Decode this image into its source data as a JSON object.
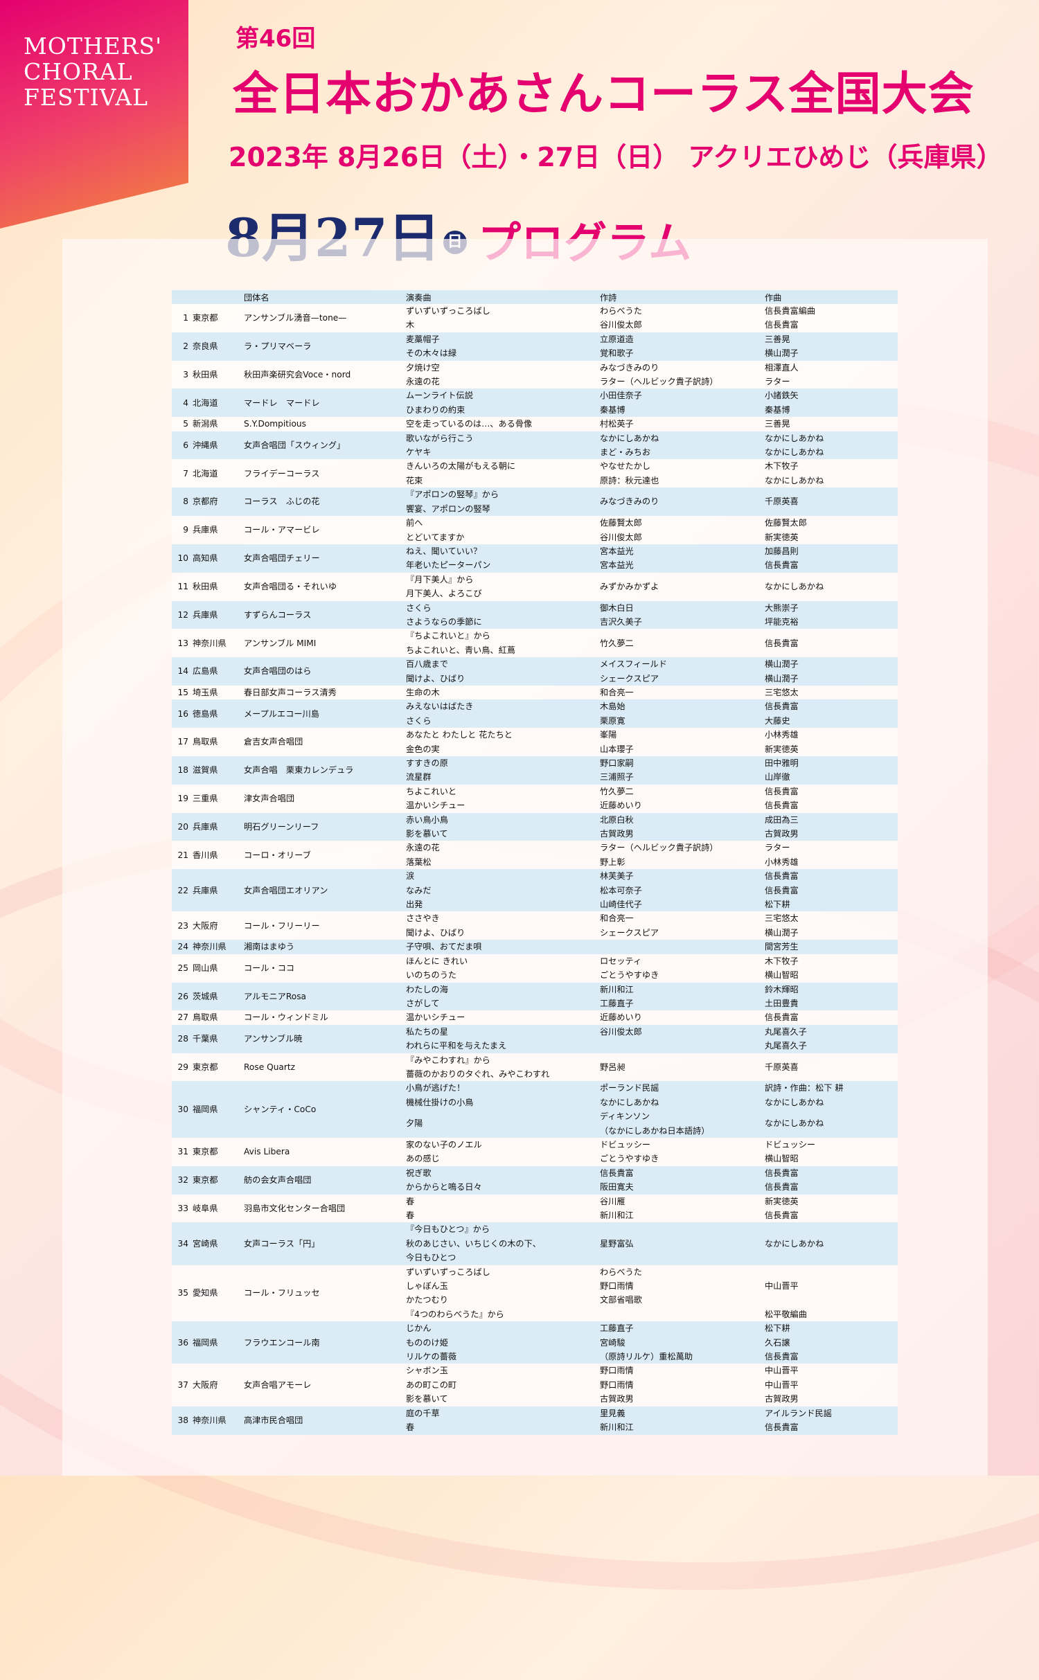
{
  "header": {
    "corner_lines": [
      "MOTHERS'",
      "CHORAL",
      "FESTIVAL"
    ],
    "edition": "第46回",
    "title": "全日本おかあさんコーラス全国大会",
    "dateline": "2023年 8月26日（土）・27日（日） アクリエひめじ（兵庫県）",
    "program_date": "8月27日",
    "program_dow": "日",
    "program_label": "プログラム"
  },
  "table": {
    "columns": [
      "",
      "",
      "団体名",
      "演奏曲",
      "作詩",
      "作曲"
    ],
    "groups": [
      {
        "no": "1",
        "pref": "東京都",
        "name": "アンサンブル湧音—tone—",
        "rows": [
          [
            "ずいずいずっころばし",
            "わらべうた",
            "信長貴富編曲"
          ],
          [
            "木",
            "谷川俊太郎",
            "信長貴富"
          ]
        ]
      },
      {
        "no": "2",
        "pref": "奈良県",
        "name": "ラ・プリマベーラ",
        "rows": [
          [
            "麦藁帽子",
            "立原道造",
            "三善晃"
          ],
          [
            "その木々は緑",
            "覚和歌子",
            "横山潤子"
          ]
        ]
      },
      {
        "no": "3",
        "pref": "秋田県",
        "name": "秋田声楽研究会Voce・nord",
        "rows": [
          [
            "夕焼け空",
            "みなづきみのり",
            "相澤直人"
          ],
          [
            "永遠の花",
            "ラター（ヘルビック貴子訳詩）",
            "ラター"
          ]
        ]
      },
      {
        "no": "4",
        "pref": "北海道",
        "name": "マードレ　マードレ",
        "rows": [
          [
            "ムーンライト伝説",
            "小田佳奈子",
            "小諸鉄矢"
          ],
          [
            "ひまわりの約束",
            "秦基博",
            "秦基博"
          ]
        ]
      },
      {
        "no": "5",
        "pref": "新潟県",
        "name": "S.Y.Dompitious",
        "rows": [
          [
            "空を走っているのは…、ある骨像",
            "村松英子",
            "三善晃"
          ]
        ]
      },
      {
        "no": "6",
        "pref": "沖縄県",
        "name": "女声合唱団「スウィング」",
        "rows": [
          [
            "歌いながら行こう",
            "なかにしあかね",
            "なかにしあかね"
          ],
          [
            "ケヤキ",
            "まど・みちお",
            "なかにしあかね"
          ]
        ]
      },
      {
        "no": "7",
        "pref": "北海道",
        "name": "フライデーコーラス",
        "rows": [
          [
            "きんいろの太陽がもえる朝に",
            "やなせたかし",
            "木下牧子"
          ],
          [
            "花束",
            "原詩：秋元達也",
            "なかにしあかね"
          ]
        ]
      },
      {
        "no": "8",
        "pref": "京都府",
        "name": "コーラス　ふじの花",
        "rows": [
          [
            "『アポロンの竪琴』から\n饗宴、アポロンの竪琴",
            "みなづきみのり",
            "千原英喜"
          ]
        ]
      },
      {
        "no": "9",
        "pref": "兵庫県",
        "name": "コール・アマービレ",
        "rows": [
          [
            "前へ",
            "佐藤賢太郎",
            "佐藤賢太郎"
          ],
          [
            "とどいてますか",
            "谷川俊太郎",
            "新実徳英"
          ]
        ]
      },
      {
        "no": "10",
        "pref": "高知県",
        "name": "女声合唱団チェリー",
        "rows": [
          [
            "ねえ、聞いていい？",
            "宮本益光",
            "加藤昌則"
          ],
          [
            "年老いたピーターパン",
            "宮本益光",
            "信長貴富"
          ]
        ]
      },
      {
        "no": "11",
        "pref": "秋田県",
        "name": "女声合唱団る・それいゆ",
        "rows": [
          [
            "『月下美人』から\n月下美人、よろこび",
            "みずかみかずよ",
            "なかにしあかね"
          ]
        ]
      },
      {
        "no": "12",
        "pref": "兵庫県",
        "name": "すずらんコーラス",
        "rows": [
          [
            "さくら",
            "御木白日",
            "大熊崇子"
          ],
          [
            "さようならの季節に",
            "吉沢久美子",
            "坪能克裕"
          ]
        ]
      },
      {
        "no": "13",
        "pref": "神奈川県",
        "name": "アンサンブル MIMI",
        "rows": [
          [
            "『ちよこれいと』から\nちよこれいと、青い鳥、紅蔦",
            "竹久夢二",
            "信長貴富"
          ]
        ]
      },
      {
        "no": "14",
        "pref": "広島県",
        "name": "女声合唱団のはら",
        "rows": [
          [
            "百八歳まで",
            "メイスフィールド",
            "横山潤子"
          ],
          [
            "聞けよ、ひばり",
            "シェークスピア",
            "横山潤子"
          ]
        ]
      },
      {
        "no": "15",
        "pref": "埼玉県",
        "name": "春日部女声コーラス清秀",
        "rows": [
          [
            "生命の木",
            "和合亮一",
            "三宅悠太"
          ]
        ]
      },
      {
        "no": "16",
        "pref": "徳島県",
        "name": "メープルエコー川島",
        "rows": [
          [
            "みえないはばたき",
            "木島始",
            "信長貴富"
          ],
          [
            "さくら",
            "栗原寛",
            "大藤史"
          ]
        ]
      },
      {
        "no": "17",
        "pref": "鳥取県",
        "name": "倉吉女声合唱団",
        "rows": [
          [
            "あなたと わたしと 花たちと",
            "峯陽",
            "小林秀雄"
          ],
          [
            "金色の実",
            "山本瓔子",
            "新実徳英"
          ]
        ]
      },
      {
        "no": "18",
        "pref": "滋賀県",
        "name": "女声合唱　栗東カレンデュラ",
        "rows": [
          [
            "すすきの原",
            "野口家嗣",
            "田中雅明"
          ],
          [
            "流星群",
            "三浦照子",
            "山岸徹"
          ]
        ]
      },
      {
        "no": "19",
        "pref": "三重県",
        "name": "津女声合唱団",
        "rows": [
          [
            "ちよこれいと",
            "竹久夢二",
            "信長貴富"
          ],
          [
            "温かいシチュー",
            "近藤めいり",
            "信長貴富"
          ]
        ]
      },
      {
        "no": "20",
        "pref": "兵庫県",
        "name": "明石グリーンリーフ",
        "rows": [
          [
            "赤い鳥小鳥",
            "北原白秋",
            "成田為三"
          ],
          [
            "影を慕いて",
            "古賀政男",
            "古賀政男"
          ]
        ]
      },
      {
        "no": "21",
        "pref": "香川県",
        "name": "コーロ・オリーブ",
        "rows": [
          [
            "永遠の花",
            "ラター（ヘルビック貴子訳詩）",
            "ラター"
          ],
          [
            "落葉松",
            "野上彰",
            "小林秀雄"
          ]
        ]
      },
      {
        "no": "22",
        "pref": "兵庫県",
        "name": "女声合唱団エオリアン",
        "rows": [
          [
            "涙",
            "林芙美子",
            "信長貴富"
          ],
          [
            "なみだ",
            "松本可奈子",
            "信長貴富"
          ],
          [
            "出発",
            "山崎佳代子",
            "松下耕"
          ]
        ]
      },
      {
        "no": "23",
        "pref": "大阪府",
        "name": "コール・フリーリー",
        "rows": [
          [
            "ささやき",
            "和合亮一",
            "三宅悠太"
          ],
          [
            "聞けよ、ひばり",
            "シェークスピア",
            "横山潤子"
          ]
        ]
      },
      {
        "no": "24",
        "pref": "神奈川県",
        "name": "湘南はまゆう",
        "rows": [
          [
            "子守唄、おてだま唄",
            "",
            "間宮芳生"
          ]
        ]
      },
      {
        "no": "25",
        "pref": "岡山県",
        "name": "コール・ココ",
        "rows": [
          [
            "ほんとに きれい",
            "ロセッティ",
            "木下牧子"
          ],
          [
            "いのちのうた",
            "ごとうやすゆき",
            "横山智昭"
          ]
        ]
      },
      {
        "no": "26",
        "pref": "茨城県",
        "name": "アルモニアRosa",
        "rows": [
          [
            "わたしの海",
            "新川和江",
            "鈴木輝昭"
          ],
          [
            "さがして",
            "工藤直子",
            "土田豊貴"
          ]
        ]
      },
      {
        "no": "27",
        "pref": "鳥取県",
        "name": "コール・ウィンドミル",
        "rows": [
          [
            "温かいシチュー",
            "近藤めいり",
            "信長貴富"
          ]
        ]
      },
      {
        "no": "28",
        "pref": "千葉県",
        "name": "アンサンブル暁",
        "rows": [
          [
            "私たちの星",
            "谷川俊太郎",
            "丸尾喜久子"
          ],
          [
            "われらに平和を与えたまえ",
            "",
            "丸尾喜久子"
          ]
        ]
      },
      {
        "no": "29",
        "pref": "東京都",
        "name": "Rose Quartz",
        "rows": [
          [
            "『みやこわすれ』から\n薔薇のかおりのタぐれ、みやこわすれ",
            "野呂昶",
            "千原英喜"
          ]
        ]
      },
      {
        "no": "30",
        "pref": "福岡県",
        "name": "シャンティ・CoCo",
        "rows": [
          [
            "小鳥が逃げた！",
            "ポーランド民謡",
            "訳詩・作曲：松下 耕"
          ],
          [
            "機械仕掛けの小鳥",
            "なかにしあかね",
            "なかにしあかね"
          ],
          [
            "夕陽",
            "ディキンソン\n（なかにしあかね日本語詩）",
            "なかにしあかね"
          ]
        ]
      },
      {
        "no": "31",
        "pref": "東京都",
        "name": "Avis Libera",
        "rows": [
          [
            "家のない子のノエル",
            "ドビュッシー",
            "ドビュッシー"
          ],
          [
            "あの感じ",
            "ごとうやすゆき",
            "横山智昭"
          ]
        ]
      },
      {
        "no": "32",
        "pref": "東京都",
        "name": "舫の会女声合唱団",
        "rows": [
          [
            "祝ぎ歌",
            "信長貴富",
            "信長貴富"
          ],
          [
            "からからと鳴る日々",
            "阪田寛夫",
            "信長貴富"
          ]
        ]
      },
      {
        "no": "33",
        "pref": "岐阜県",
        "name": "羽島市文化センター合唱団",
        "rows": [
          [
            "春",
            "谷川雁",
            "新実徳英"
          ],
          [
            "春",
            "新川和江",
            "信長貴富"
          ]
        ]
      },
      {
        "no": "34",
        "pref": "宮崎県",
        "name": "女声コーラス「円」",
        "rows": [
          [
            "『今日もひとつ』から\n秋のあじさい、いちじくの木の下、\n今日もひとつ",
            "星野富弘",
            "なかにしあかね"
          ]
        ]
      },
      {
        "no": "35",
        "pref": "愛知県",
        "name": "コール・フリュッセ",
        "rows": [
          [
            "ずいずいずっころばし",
            "わらべうた",
            ""
          ],
          [
            "しゃぼん玉",
            "野口雨情",
            "中山晋平"
          ],
          [
            "かたつむり",
            "文部省唱歌",
            ""
          ],
          [
            "『4つのわらべうた』から",
            "",
            "松平敬編曲"
          ]
        ]
      },
      {
        "no": "36",
        "pref": "福岡県",
        "name": "フラウエンコール南",
        "rows": [
          [
            "じかん",
            "工藤直子",
            "松下耕"
          ],
          [
            "もののけ姫",
            "宮崎駿",
            "久石譲"
          ],
          [
            "リルケの薔薇",
            "（原詩リルケ）重松萬助",
            "信長貴富"
          ]
        ]
      },
      {
        "no": "37",
        "pref": "大阪府",
        "name": "女声合唱アモーレ",
        "rows": [
          [
            "シャボン玉",
            "野口雨情",
            "中山晋平"
          ],
          [
            "あの町この町",
            "野口雨情",
            "中山晋平"
          ],
          [
            "影を慕いて",
            "古賀政男",
            "古賀政男"
          ]
        ]
      },
      {
        "no": "38",
        "pref": "神奈川県",
        "name": "高津市民合唱団",
        "rows": [
          [
            "庭の千草",
            "里見義",
            "アイルランド民謡"
          ],
          [
            "春",
            "新川和江",
            "信長貴富"
          ]
        ]
      }
    ]
  }
}
